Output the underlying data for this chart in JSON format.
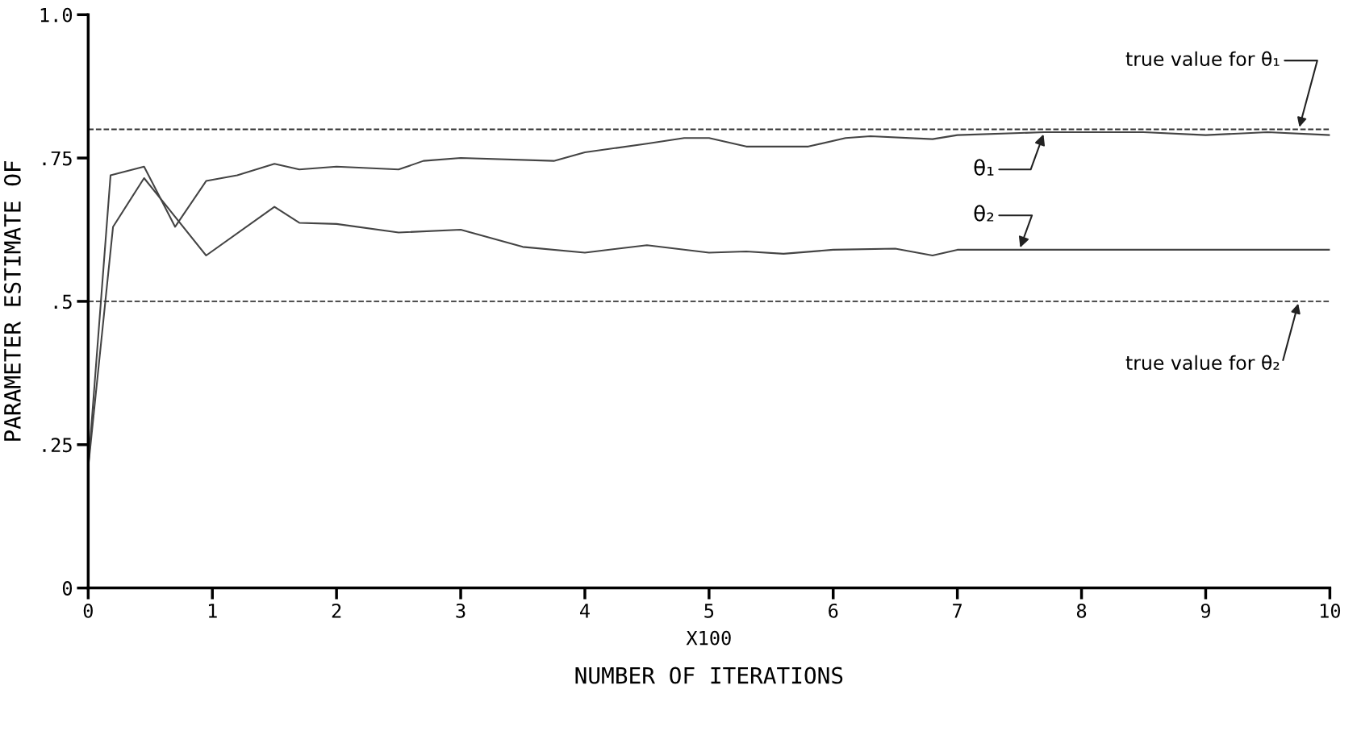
{
  "chart_data": {
    "type": "line",
    "xlabel": "NUMBER OF ITERATIONS",
    "ylabel": "PARAMETER ESTIMATE OF",
    "annotations": [
      "X100"
    ],
    "xlim": [
      0,
      10
    ],
    "ylim": [
      0,
      1.0
    ],
    "xticks": [
      0,
      1,
      2,
      3,
      4,
      5,
      6,
      7,
      8,
      9,
      10
    ],
    "yticks": [
      0,
      {
        "value": 0.25,
        "label": ".25"
      },
      {
        "value": 0.5,
        "label": ".5"
      },
      {
        "value": 0.75,
        "label": ".75"
      },
      {
        "value": 1.0,
        "label": "1.0"
      }
    ],
    "grid": false,
    "legend": false,
    "marker": "none",
    "line_style": "solid",
    "ref_lines": [
      {
        "axis": "y",
        "value": 0.8,
        "label": "true value for θ₁",
        "color": "#333333",
        "line_style": "dashed"
      },
      {
        "axis": "y",
        "value": 0.5,
        "label": "true value for θ₂",
        "color": "#333333",
        "line_style": "dashed"
      }
    ],
    "series": [
      {
        "name": "θ₁",
        "color": "#444444",
        "x": [
          0,
          0.18,
          0.45,
          0.7,
          0.95,
          1.2,
          1.5,
          1.7,
          2.0,
          2.5,
          2.7,
          3.0,
          3.75,
          4.0,
          4.5,
          4.8,
          5.0,
          5.3,
          5.8,
          6.1,
          6.3,
          6.8,
          7.0,
          7.7,
          8.5,
          9.0,
          9.5,
          10
        ],
        "values": [
          0.21,
          0.72,
          0.735,
          0.63,
          0.71,
          0.72,
          0.74,
          0.73,
          0.735,
          0.73,
          0.745,
          0.75,
          0.745,
          0.76,
          0.775,
          0.785,
          0.785,
          0.77,
          0.77,
          0.785,
          0.788,
          0.783,
          0.79,
          0.795,
          0.795,
          0.79,
          0.795,
          0.79
        ]
      },
      {
        "name": "θ₂",
        "color": "#444444",
        "x": [
          0,
          0.2,
          0.45,
          0.95,
          1.5,
          1.7,
          2.0,
          2.5,
          3.0,
          3.5,
          4.0,
          4.5,
          5.0,
          5.3,
          5.6,
          6.0,
          6.5,
          6.8,
          7.0,
          7.5,
          10
        ],
        "values": [
          0.21,
          0.63,
          0.715,
          0.58,
          0.665,
          0.637,
          0.635,
          0.62,
          0.625,
          0.595,
          0.585,
          0.598,
          0.585,
          0.587,
          0.583,
          0.59,
          0.592,
          0.58,
          0.59,
          0.59,
          0.59
        ]
      }
    ]
  }
}
